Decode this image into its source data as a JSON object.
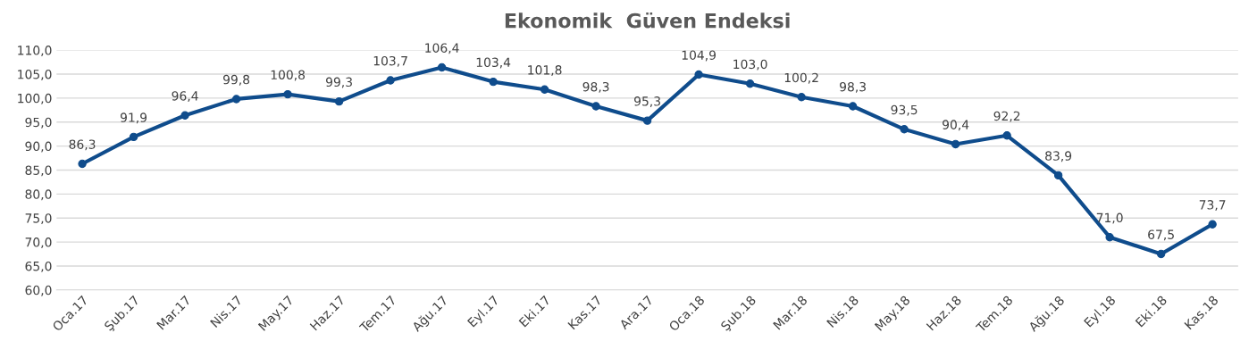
{
  "chart_data": {
    "type": "line",
    "title": "Ekonomik  Güven Endeksi",
    "categories": [
      "Oca.17",
      "Şub.17",
      "Mar.17",
      "Nis.17",
      "May.17",
      "Haz.17",
      "Tem.17",
      "Ağu.17",
      "Eyl.17",
      "Eki.17",
      "Kas.17",
      "Ara.17",
      "Oca.18",
      "Şub.18",
      "Mar.18",
      "Nis.18",
      "May.18",
      "Haz.18",
      "Tem.18",
      "Ağu.18",
      "Eyl.18",
      "Eki.18",
      "Kas.18"
    ],
    "series": [
      {
        "color": "#0f4c8c",
        "values": [
          86.3,
          91.9,
          96.4,
          99.8,
          100.8,
          99.3,
          103.7,
          106.4,
          103.4,
          101.8,
          98.3,
          95.3,
          104.9,
          103.0,
          100.2,
          98.3,
          93.5,
          90.4,
          92.2,
          83.9,
          71.0,
          67.5,
          73.7
        ],
        "value_labels": [
          "86,3",
          "91,9",
          "96,4",
          "99,8",
          "100,8",
          "99,3",
          "103,7",
          "106,4",
          "103,4",
          "101,8",
          "98,3",
          "95,3",
          "104,9",
          "103,0",
          "100,2",
          "98,3",
          "93,5",
          "90,4",
          "92,2",
          "83,9",
          "71,0",
          "67,5",
          "73,7"
        ]
      }
    ],
    "ylim": [
      60,
      110
    ],
    "yticks": [
      {
        "value": 60,
        "label": "60,0"
      },
      {
        "value": 65,
        "label": "65,0"
      },
      {
        "value": 70,
        "label": "70,0"
      },
      {
        "value": 75,
        "label": "75,0"
      },
      {
        "value": 80,
        "label": "80,0"
      },
      {
        "value": 85,
        "label": "85,0"
      },
      {
        "value": 90,
        "label": "90,0"
      },
      {
        "value": 95,
        "label": "95,0"
      },
      {
        "value": 100,
        "label": "100,0"
      },
      {
        "value": 105,
        "label": "105,0"
      },
      {
        "value": 110,
        "label": "110,0"
      }
    ],
    "grid": "y",
    "marker": "circle",
    "line_style": "solid",
    "legend": false
  }
}
